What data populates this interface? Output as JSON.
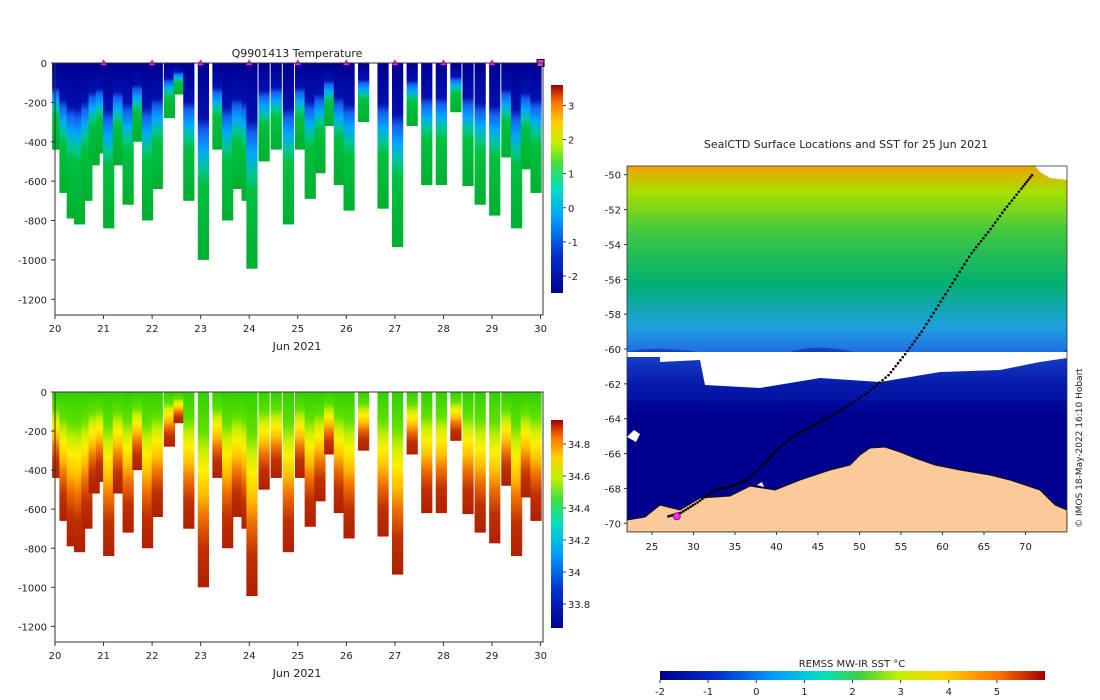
{
  "chart_data": [
    {
      "type": "heatmap",
      "title": "Q9901413  Temperature",
      "xlabel": "Jun 2021",
      "ylabel": "",
      "x_ticks": [
        "20",
        "21",
        "22",
        "23",
        "24",
        "25",
        "26",
        "27",
        "28",
        "29",
        "30"
      ],
      "xlim": [
        20,
        30.05
      ],
      "y_ticks": [
        "0",
        "-200",
        "-400",
        "-600",
        "-800",
        "-1000",
        "-1200"
      ],
      "ylim": [
        -1280,
        0
      ],
      "colorbar_ticks": [
        "3",
        "2",
        "1",
        "0",
        "-1",
        "-2"
      ],
      "colorbar_range": [
        -2.5,
        3.6
      ],
      "marker_days": [
        21,
        22,
        23,
        24,
        25,
        26,
        27,
        28,
        29,
        30
      ],
      "profiles": [
        {
          "day": 20.05,
          "depth": 440
        },
        {
          "day": 20.2,
          "depth": 660
        },
        {
          "day": 20.35,
          "depth": 790
        },
        {
          "day": 20.5,
          "depth": 820
        },
        {
          "day": 20.65,
          "depth": 700
        },
        {
          "day": 20.8,
          "depth": 520
        },
        {
          "day": 20.95,
          "depth": 460
        },
        {
          "day": 21.1,
          "depth": 840
        },
        {
          "day": 21.3,
          "depth": 520
        },
        {
          "day": 21.5,
          "depth": 720
        },
        {
          "day": 21.7,
          "depth": 400
        },
        {
          "day": 21.9,
          "depth": 800
        },
        {
          "day": 22.1,
          "depth": 640
        },
        {
          "day": 22.35,
          "depth": 280
        },
        {
          "day": 22.55,
          "depth": 160
        },
        {
          "day": 22.75,
          "depth": 700
        },
        {
          "day": 23.05,
          "depth": 1000
        },
        {
          "day": 23.35,
          "depth": 440
        },
        {
          "day": 23.55,
          "depth": 800
        },
        {
          "day": 23.75,
          "depth": 640
        },
        {
          "day": 23.95,
          "depth": 700
        },
        {
          "day": 24.05,
          "depth": 1045
        },
        {
          "day": 24.3,
          "depth": 500
        },
        {
          "day": 24.55,
          "depth": 440
        },
        {
          "day": 24.8,
          "depth": 820
        },
        {
          "day": 25.05,
          "depth": 440
        },
        {
          "day": 25.25,
          "depth": 690
        },
        {
          "day": 25.45,
          "depth": 560
        },
        {
          "day": 25.65,
          "depth": 320
        },
        {
          "day": 25.85,
          "depth": 620
        },
        {
          "day": 26.05,
          "depth": 750
        },
        {
          "day": 26.35,
          "depth": 300
        },
        {
          "day": 26.75,
          "depth": 740
        },
        {
          "day": 27.05,
          "depth": 935
        },
        {
          "day": 27.35,
          "depth": 320
        },
        {
          "day": 27.65,
          "depth": 620
        },
        {
          "day": 27.95,
          "depth": 620
        },
        {
          "day": 28.25,
          "depth": 250
        },
        {
          "day": 28.5,
          "depth": 625
        },
        {
          "day": 28.75,
          "depth": 720
        },
        {
          "day": 29.05,
          "depth": 775
        },
        {
          "day": 29.3,
          "depth": 480
        },
        {
          "day": 29.5,
          "depth": 840
        },
        {
          "day": 29.7,
          "depth": 540
        },
        {
          "day": 29.9,
          "depth": 660
        }
      ]
    },
    {
      "type": "heatmap",
      "title": "",
      "xlabel": "Jun 2021",
      "ylabel": "",
      "x_ticks": [
        "20",
        "21",
        "22",
        "23",
        "24",
        "25",
        "26",
        "27",
        "28",
        "29",
        "30"
      ],
      "xlim": [
        20,
        30.05
      ],
      "y_ticks": [
        "0",
        "-200",
        "-400",
        "-600",
        "-800",
        "-1000",
        "-1200"
      ],
      "ylim": [
        -1280,
        0
      ],
      "colorbar_ticks": [
        "34.8",
        "34.6",
        "34.4",
        "34.2",
        "34",
        "33.8"
      ],
      "colorbar_range": [
        33.65,
        34.95
      ]
    },
    {
      "type": "heatmap",
      "title": "SealCTD Surface Locations and SST for 25 Jun 2021",
      "x_ticks": [
        "25",
        "30",
        "35",
        "40",
        "45",
        "50",
        "55",
        "60",
        "65",
        "70"
      ],
      "xlim": [
        22,
        75
      ],
      "y_ticks": [
        "-50",
        "-52",
        "-54",
        "-56",
        "-58",
        "-60",
        "-62",
        "-64",
        "-66",
        "-68",
        "-70"
      ],
      "ylim": [
        -70.5,
        -49.5
      ],
      "colorbar_label": "REMSS MW-IR SST °C",
      "colorbar_ticks": [
        "-2",
        "-1",
        "0",
        "1",
        "2",
        "3",
        "4",
        "5"
      ],
      "colorbar_range": [
        -2,
        6
      ],
      "credit": "© IMOS 18-May-2022 16:10 Hobart",
      "track": [
        [
          27,
          -69.6
        ],
        [
          28.5,
          -69.4
        ],
        [
          30.5,
          -68.8
        ],
        [
          32.5,
          -68.1
        ],
        [
          34.5,
          -67.9
        ],
        [
          36.5,
          -67.5
        ],
        [
          38.5,
          -66.6
        ],
        [
          40,
          -65.8
        ],
        [
          42,
          -65
        ],
        [
          44,
          -64.5
        ],
        [
          46,
          -64
        ],
        [
          48.5,
          -63.3
        ],
        [
          51,
          -62.5
        ],
        [
          53.5,
          -61.5
        ],
        [
          55.5,
          -60.3
        ],
        [
          57.5,
          -59
        ],
        [
          59.5,
          -57.5
        ],
        [
          61.5,
          -56
        ],
        [
          63.5,
          -54.5
        ],
        [
          65.5,
          -53.3
        ],
        [
          67.5,
          -52
        ],
        [
          69.5,
          -50.8
        ],
        [
          71,
          -49.9
        ]
      ],
      "current_location": [
        28,
        -69.6
      ]
    }
  ]
}
